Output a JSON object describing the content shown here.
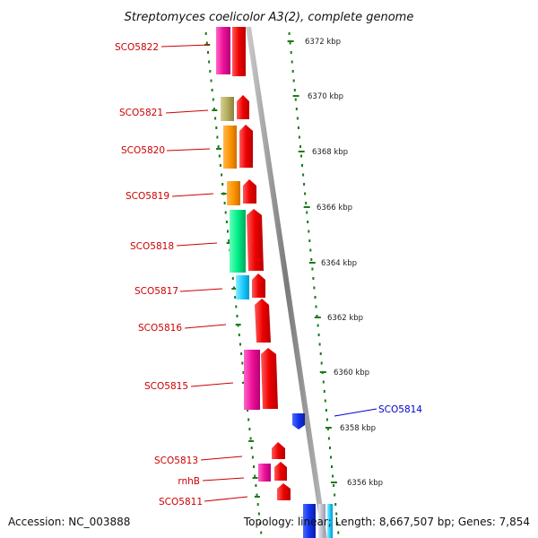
{
  "title": "Streptomyces coelicolor A3(2), complete genome",
  "footer": {
    "accession": "Accession: NC_003888",
    "summary": "Topology: linear; Length: 8,667,507 bp; Genes: 7,854"
  },
  "colors": {
    "label_primary": "#cc0000",
    "label_secondary": "#0000cc",
    "tick": "#1a7a1a",
    "backbone": "#999999"
  },
  "gene_labels": [
    {
      "id": "SCO5822",
      "text": "SCO5822",
      "color": "red"
    },
    {
      "id": "SCO5821",
      "text": "SCO5821",
      "color": "red"
    },
    {
      "id": "SCO5820",
      "text": "SCO5820",
      "color": "red"
    },
    {
      "id": "SCO5819",
      "text": "SCO5819",
      "color": "red"
    },
    {
      "id": "SCO5818",
      "text": "SCO5818",
      "color": "red"
    },
    {
      "id": "SCO5817",
      "text": "SCO5817",
      "color": "red"
    },
    {
      "id": "SCO5816",
      "text": "SCO5816",
      "color": "red"
    },
    {
      "id": "SCO5815",
      "text": "SCO5815",
      "color": "red"
    },
    {
      "id": "SCO5814",
      "text": "SCO5814",
      "color": "blue"
    },
    {
      "id": "SCO5813",
      "text": "SCO5813",
      "color": "red"
    },
    {
      "id": "rnhB",
      "text": "rnhB",
      "color": "red"
    },
    {
      "id": "SCO5811",
      "text": "SCO5811",
      "color": "red"
    }
  ],
  "ruler_labels": [
    "6372 kbp",
    "6370 kbp",
    "6368 kbp",
    "6366 kbp",
    "6364 kbp",
    "6362 kbp",
    "6360 kbp",
    "6358 kbp",
    "6356 kbp"
  ]
}
